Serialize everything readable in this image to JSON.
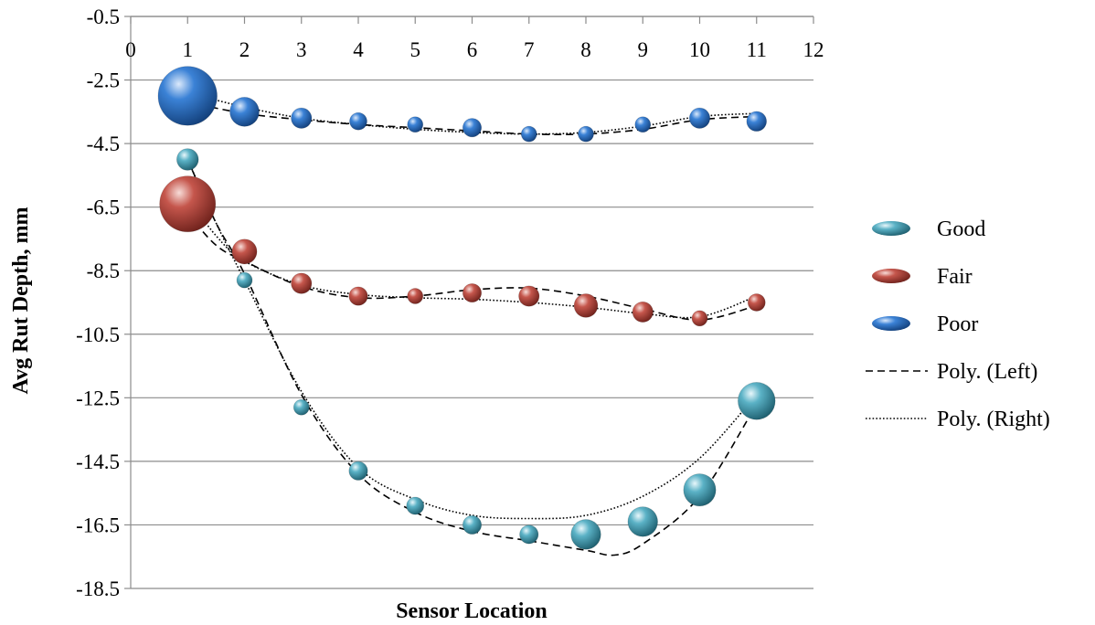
{
  "chart_data": {
    "type": "bubble",
    "xlabel": "Sensor Location",
    "ylabel": "Avg Rut Depth, mm",
    "xlim": [
      0,
      12
    ],
    "ylim": [
      -18.5,
      -0.5
    ],
    "x_ticks": [
      "0",
      "1",
      "2",
      "3",
      "4",
      "5",
      "6",
      "7",
      "8",
      "9",
      "10",
      "11",
      "12"
    ],
    "y_ticks": [
      "-0.5",
      "-2.5",
      "-4.5",
      "-6.5",
      "-8.5",
      "-10.5",
      "-12.5",
      "-14.5",
      "-16.5",
      "-18.5"
    ],
    "x_axis_position": "top",
    "grid": "horizontal",
    "legend_position": "right",
    "series": [
      {
        "name": "Good",
        "color": "#3a8fa3",
        "x": [
          1,
          2,
          3,
          4,
          5,
          6,
          7,
          8,
          9,
          10,
          11
        ],
        "y": [
          -5.0,
          -8.8,
          -12.8,
          -14.8,
          -15.9,
          -16.5,
          -16.8,
          -16.8,
          -16.4,
          -15.4,
          -12.6
        ],
        "size": [
          0.35,
          0.25,
          0.25,
          0.3,
          0.28,
          0.3,
          0.3,
          0.48,
          0.48,
          0.52,
          0.6
        ]
      },
      {
        "name": "Fair",
        "color": "#b8473f",
        "x": [
          1,
          2,
          3,
          4,
          5,
          6,
          7,
          8,
          9,
          10,
          11
        ],
        "y": [
          -6.4,
          -7.9,
          -8.9,
          -9.3,
          -9.3,
          -9.2,
          -9.3,
          -9.6,
          -9.8,
          -10.0,
          -9.5
        ],
        "size": [
          0.9,
          0.4,
          0.33,
          0.3,
          0.25,
          0.3,
          0.33,
          0.38,
          0.33,
          0.25,
          0.28
        ]
      },
      {
        "name": "Poor",
        "color": "#2a6cc0",
        "x": [
          1,
          2,
          3,
          4,
          5,
          6,
          7,
          8,
          9,
          10,
          11
        ],
        "y": [
          -3.0,
          -3.5,
          -3.7,
          -3.8,
          -3.9,
          -4.0,
          -4.2,
          -4.2,
          -3.9,
          -3.7,
          -3.8
        ],
        "size": [
          0.95,
          0.47,
          0.33,
          0.28,
          0.25,
          0.3,
          0.25,
          0.25,
          0.25,
          0.33,
          0.32
        ]
      }
    ],
    "trendlines": [
      {
        "name": "Poly. (Left)",
        "style": "dashed",
        "curves": [
          [
            [
              1,
              -3.2
            ],
            [
              2,
              -3.55
            ],
            [
              3,
              -3.75
            ],
            [
              4,
              -3.9
            ],
            [
              5,
              -4.0
            ],
            [
              6,
              -4.1
            ],
            [
              7,
              -4.2
            ],
            [
              8,
              -4.2
            ],
            [
              9,
              -4.05
            ],
            [
              10,
              -3.75
            ],
            [
              11,
              -3.65
            ]
          ],
          [
            [
              1,
              -6.7
            ],
            [
              1.5,
              -7.7
            ],
            [
              2,
              -8.2
            ],
            [
              3,
              -9.0
            ],
            [
              4,
              -9.35
            ],
            [
              5,
              -9.3
            ],
            [
              6,
              -9.1
            ],
            [
              7,
              -9.05
            ],
            [
              8,
              -9.3
            ],
            [
              9,
              -9.7
            ],
            [
              10,
              -10.05
            ],
            [
              11,
              -9.6
            ]
          ],
          [
            [
              1,
              -5.0
            ],
            [
              1.5,
              -7.0
            ],
            [
              2,
              -8.6
            ],
            [
              3,
              -12.4
            ],
            [
              4,
              -14.9
            ],
            [
              5,
              -16.1
            ],
            [
              6,
              -16.7
            ],
            [
              7,
              -17.0
            ],
            [
              8,
              -17.3
            ],
            [
              8.5,
              -17.45
            ],
            [
              9,
              -17.1
            ],
            [
              10,
              -15.6
            ],
            [
              11,
              -12.7
            ]
          ]
        ]
      },
      {
        "name": "Poly. (Right)",
        "style": "dotted",
        "curves": [
          [
            [
              1,
              -2.9
            ],
            [
              2,
              -3.35
            ],
            [
              3,
              -3.7
            ],
            [
              4,
              -3.9
            ],
            [
              5,
              -4.05
            ],
            [
              6,
              -4.15
            ],
            [
              7,
              -4.2
            ],
            [
              8,
              -4.15
            ],
            [
              9,
              -3.95
            ],
            [
              10,
              -3.65
            ],
            [
              11,
              -3.55
            ]
          ],
          [
            [
              1,
              -6.2
            ],
            [
              1.5,
              -7.4
            ],
            [
              2,
              -8.2
            ],
            [
              3,
              -8.95
            ],
            [
              4,
              -9.25
            ],
            [
              5,
              -9.35
            ],
            [
              6,
              -9.4
            ],
            [
              7,
              -9.5
            ],
            [
              8,
              -9.65
            ],
            [
              9,
              -9.85
            ],
            [
              10,
              -9.95
            ],
            [
              11,
              -9.3
            ]
          ],
          [
            [
              1,
              -5.0
            ],
            [
              1.5,
              -7.0
            ],
            [
              2,
              -8.8
            ],
            [
              3,
              -12.3
            ],
            [
              4,
              -14.7
            ],
            [
              5,
              -15.7
            ],
            [
              6,
              -16.2
            ],
            [
              7,
              -16.3
            ],
            [
              8,
              -16.2
            ],
            [
              9,
              -15.6
            ],
            [
              10,
              -14.4
            ],
            [
              11,
              -12.4
            ]
          ]
        ]
      }
    ],
    "legend": [
      {
        "label": "Good",
        "kind": "bubble",
        "color": "#3a8fa3"
      },
      {
        "label": "Fair",
        "kind": "bubble",
        "color": "#b8473f"
      },
      {
        "label": "Poor",
        "kind": "bubble",
        "color": "#2a6cc0"
      },
      {
        "label": "Poly. (Left)",
        "kind": "dashed"
      },
      {
        "label": "Poly. (Right)",
        "kind": "dotted"
      }
    ]
  }
}
